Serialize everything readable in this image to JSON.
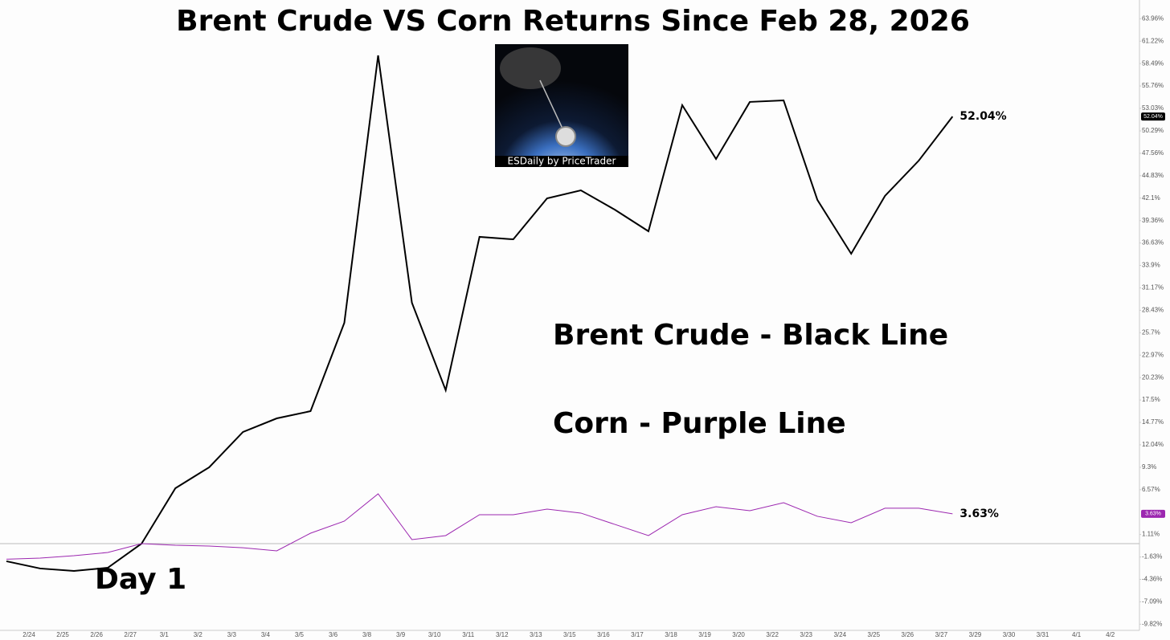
{
  "chart_data": {
    "type": "line",
    "title": "Brent Crude VS Corn Returns Since Feb 28, 2026",
    "image_caption": "ESDaily by PriceTrader",
    "annotations": [
      "Day 1"
    ],
    "categories": [
      null,
      "2/24",
      "2/25",
      "2/26",
      "2/27",
      "3/1",
      "3/2",
      "3/3",
      "3/4",
      "3/5",
      "3/6",
      "3/8",
      "3/9",
      "3/10",
      "3/11",
      "3/12",
      "3/13",
      "3/15",
      "3/16",
      "3/17",
      "3/18",
      "3/19",
      "3/20",
      "3/22",
      "3/23",
      "3/24",
      "3/25",
      "3/26",
      "3/27",
      "3/29",
      "3/30",
      "3/31",
      "4/1",
      "4/2"
    ],
    "series": [
      {
        "name": "Brent Crude - Black Line",
        "color": "#000000",
        "values": [
          -2.15,
          -3.03,
          -3.33,
          -2.94,
          0,
          6.75,
          9.3,
          13.6,
          15.26,
          16.14,
          26.91,
          59.49,
          29.35,
          18.69,
          37.38,
          37.08,
          42.07,
          43.05,
          40.7,
          38.06,
          53.42,
          46.87,
          53.82,
          54.01,
          41.88,
          35.32,
          42.37,
          46.67,
          52.04,
          null,
          null,
          null,
          null,
          null
        ],
        "value_labels": [
          null,
          null,
          null,
          null,
          null,
          null,
          null,
          null,
          null,
          null,
          null,
          null,
          null,
          null,
          null,
          null,
          null,
          null,
          null,
          null,
          null,
          null,
          null,
          null,
          null,
          null,
          null,
          null,
          "52.04%",
          null,
          null,
          null,
          null,
          null
        ]
      },
      {
        "name": "Corn - Purple Line",
        "color": "#9c27b0",
        "values": [
          -1.9,
          -1.76,
          -1.47,
          -1.08,
          0,
          -0.2,
          -0.3,
          -0.5,
          -0.88,
          1.27,
          2.74,
          6.07,
          0.49,
          0.98,
          3.52,
          3.52,
          4.21,
          3.72,
          2.35,
          0.98,
          3.52,
          4.5,
          4.01,
          4.99,
          3.33,
          2.54,
          4.31,
          4.31,
          3.63,
          null,
          null,
          null,
          null,
          null
        ],
        "value_labels": [
          null,
          null,
          null,
          null,
          null,
          null,
          null,
          null,
          null,
          null,
          null,
          null,
          null,
          null,
          null,
          null,
          null,
          null,
          null,
          null,
          null,
          null,
          null,
          null,
          null,
          null,
          null,
          null,
          "3.63%",
          null,
          null,
          null,
          null,
          null
        ]
      }
    ],
    "ylim": [
      -10.57,
      66.24
    ],
    "yticks": [
      {
        "value": 63.96,
        "label": "63.96%"
      },
      {
        "value": 61.22,
        "label": "61.22%"
      },
      {
        "value": 58.49,
        "label": "58.49%"
      },
      {
        "value": 55.76,
        "label": "55.76%"
      },
      {
        "value": 53.03,
        "label": "53.03%"
      },
      {
        "value": 50.29,
        "label": "50.29%"
      },
      {
        "value": 47.56,
        "label": "47.56%"
      },
      {
        "value": 44.83,
        "label": "44.83%"
      },
      {
        "value": 42.1,
        "label": "42.1%"
      },
      {
        "value": 39.36,
        "label": "39.36%"
      },
      {
        "value": 36.63,
        "label": "36.63%"
      },
      {
        "value": 33.9,
        "label": "33.9%"
      },
      {
        "value": 31.17,
        "label": "31.17%"
      },
      {
        "value": 28.43,
        "label": "28.43%"
      },
      {
        "value": 25.7,
        "label": "25.7%"
      },
      {
        "value": 22.97,
        "label": "22.97%"
      },
      {
        "value": 20.23,
        "label": "20.23%"
      },
      {
        "value": 17.5,
        "label": "17.5%"
      },
      {
        "value": 14.77,
        "label": "14.77%"
      },
      {
        "value": 12.04,
        "label": "12.04%"
      },
      {
        "value": 9.3,
        "label": "9.3%"
      },
      {
        "value": 6.57,
        "label": "6.57%"
      },
      {
        "value": 1.11,
        "label": "1.11%"
      },
      {
        "value": -1.63,
        "label": "-1.63%"
      },
      {
        "value": -4.36,
        "label": "-4.36%"
      },
      {
        "value": -7.09,
        "label": "-7.09%"
      },
      {
        "value": -9.82,
        "label": "-9.82%"
      }
    ],
    "zero_line": true,
    "grid": false
  }
}
